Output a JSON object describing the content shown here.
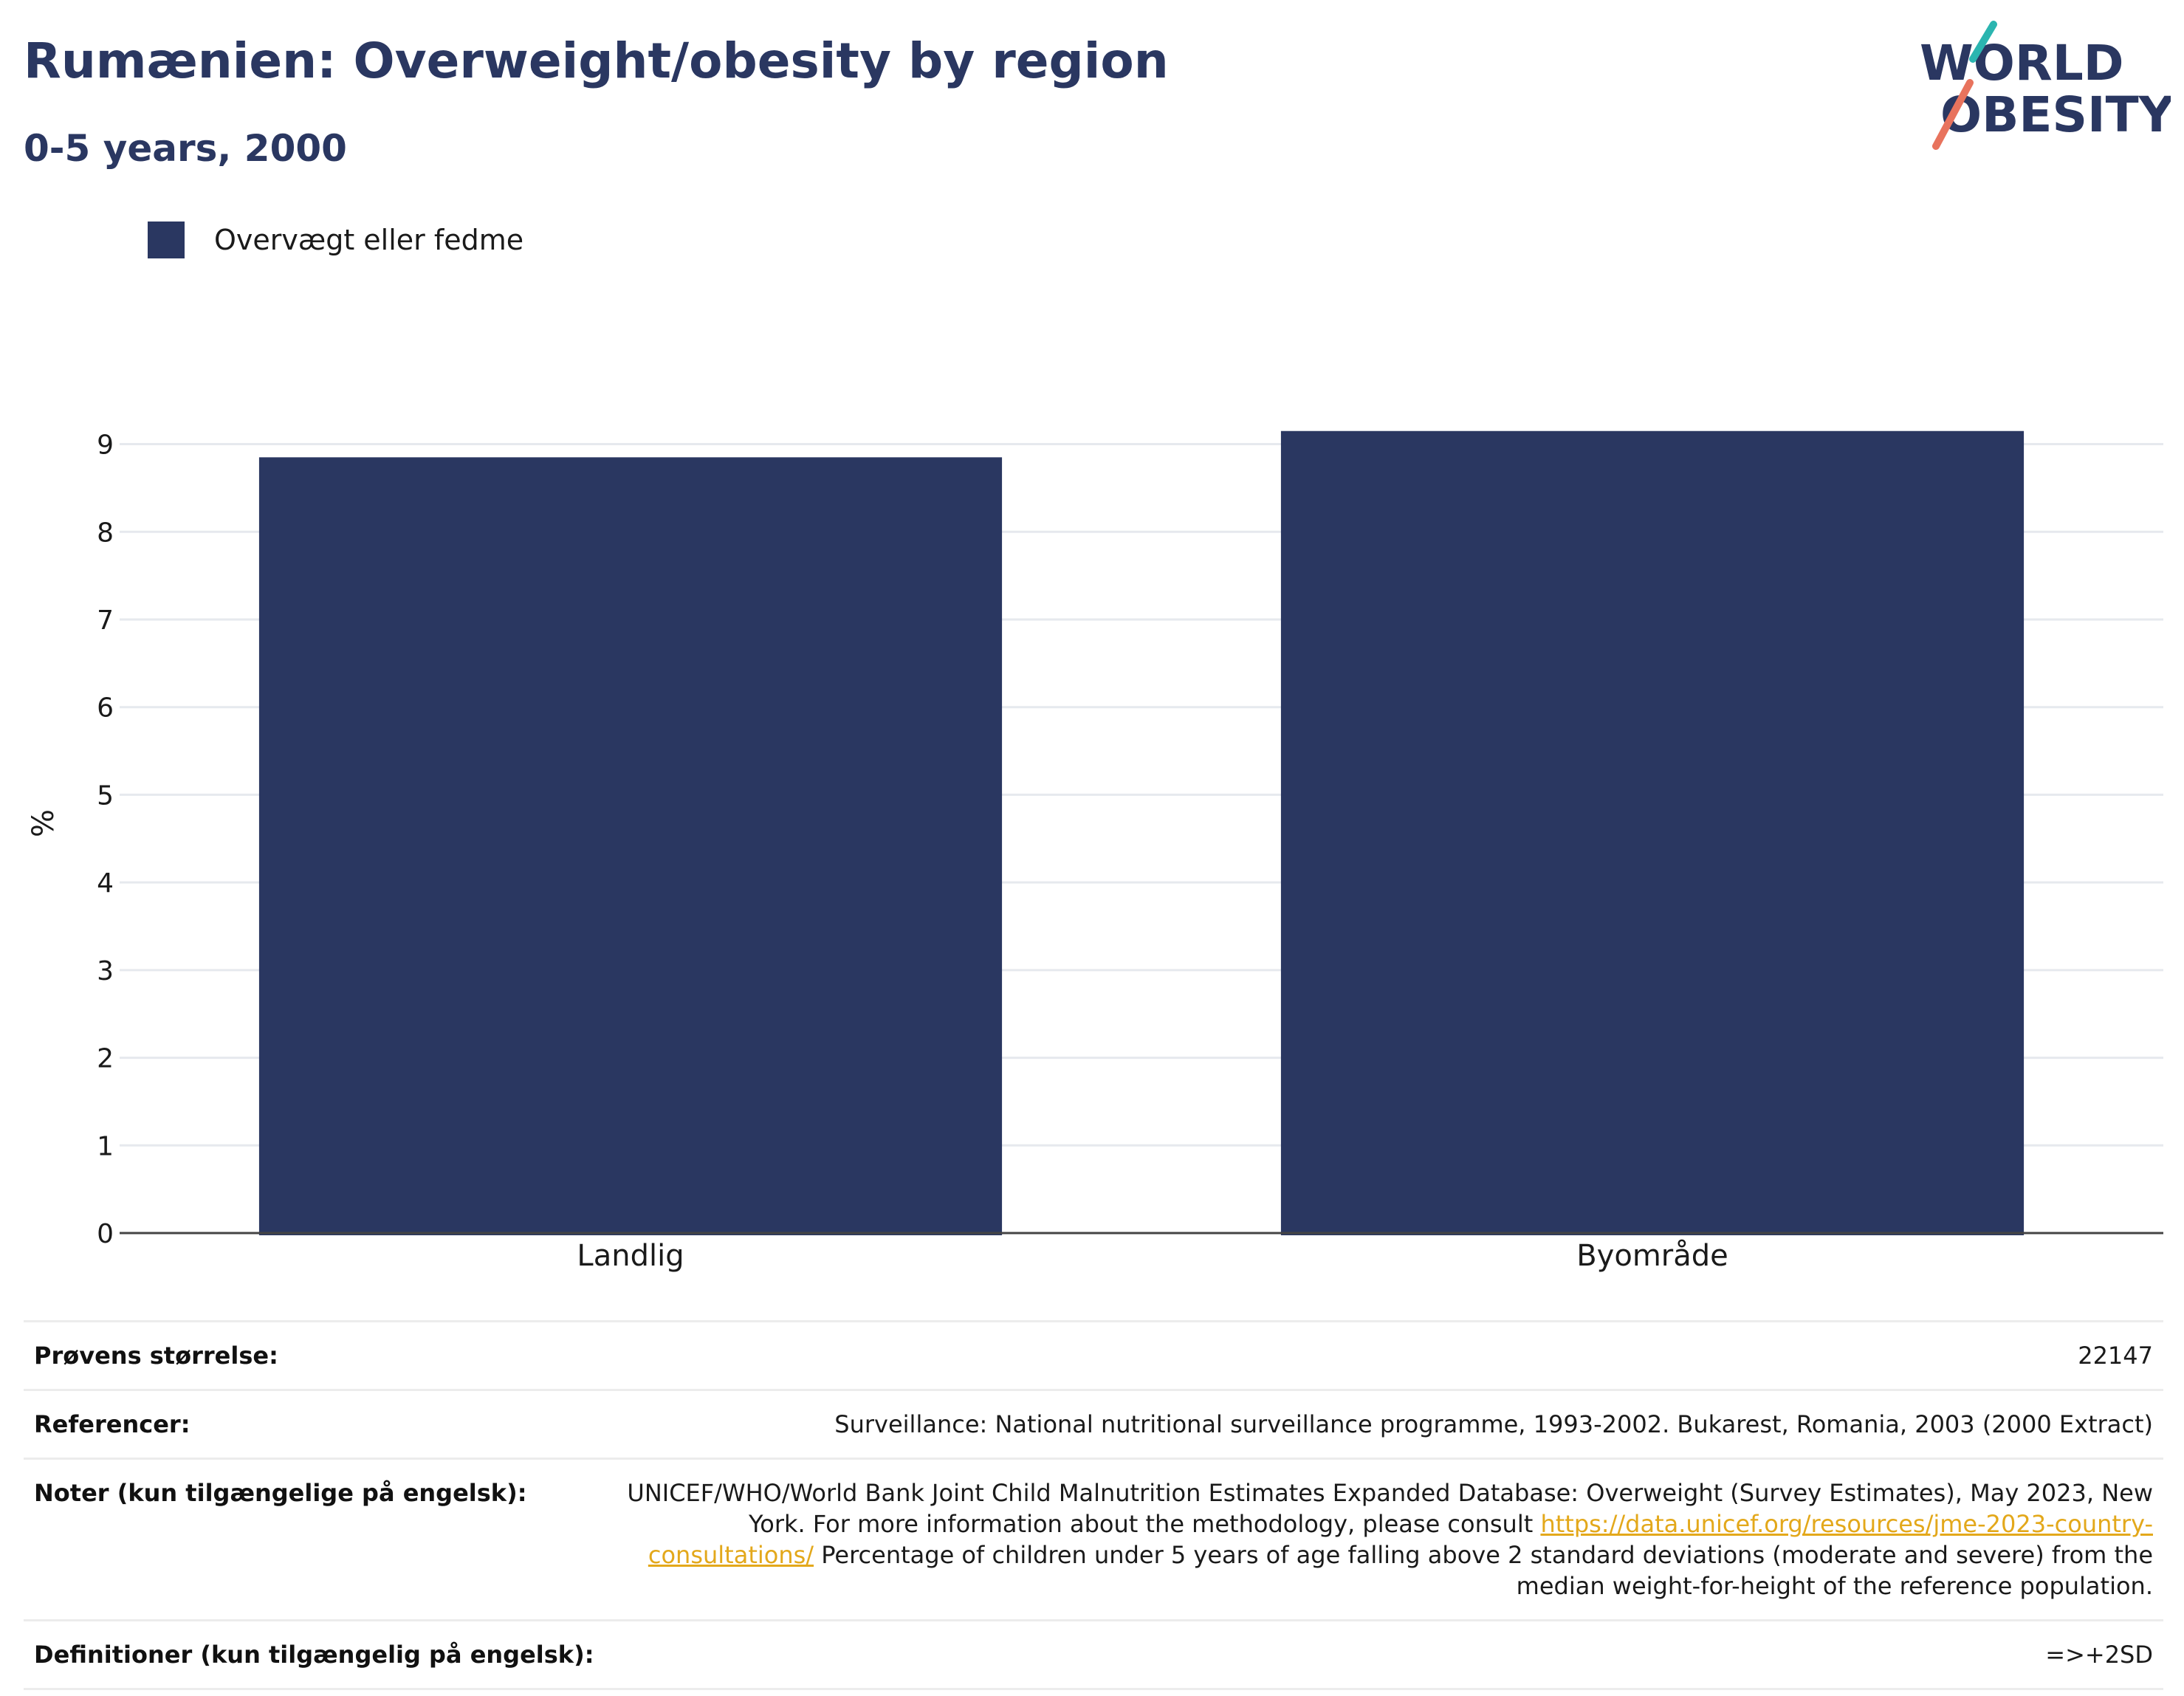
{
  "header": {
    "title": "Rumænien: Overweight/obesity by region",
    "subtitle": "0-5 years, 2000"
  },
  "logo": {
    "line1": "WORLD",
    "line2": "OBESITY",
    "colors": {
      "text": "#2a3761",
      "accent_teal": "#2bb5b0",
      "accent_coral": "#e8735d"
    }
  },
  "legend": {
    "items": [
      {
        "label": "Overvægt eller fedme",
        "color": "#2a3761"
      }
    ],
    "placement": "top-left"
  },
  "chart_data": {
    "type": "bar",
    "categories": [
      "Landlig",
      "Byområde"
    ],
    "series": [
      {
        "name": "Overvægt eller fedme",
        "values": [
          8.85,
          9.15
        ],
        "color": "#2a3761"
      }
    ],
    "title": "Rumænien: Overweight/obesity by region",
    "subtitle": "0-5 years, 2000",
    "xlabel": "",
    "ylabel": "%",
    "ylim": [
      0,
      9.35
    ],
    "yticks": [
      0,
      1,
      2,
      3,
      4,
      5,
      6,
      7,
      8,
      9
    ],
    "grid": true
  },
  "info": {
    "rows": [
      {
        "key": "Prøvens størrelse:",
        "value": "22147"
      },
      {
        "key": "Referencer:",
        "value": "Surveillance: National nutritional surveillance programme, 1993-2002. Bukarest, Romania, 2003 (2000 Extract)"
      },
      {
        "key": "Noter (kun tilgængelige på engelsk):",
        "value_part1": "UNICEF/WHO/World Bank Joint Child Malnutrition Estimates Expanded Database: Overweight (Survey Estimates), May 2023, New York. For more information about the methodology, please consult",
        "link": "https://data.unicef.org/resources/jme-2023-country-consultations/",
        "value_part2": "Percentage of children under 5 years of age falling above 2 standard deviations (moderate and severe) from the median weight-for-height of the reference population."
      },
      {
        "key": "Definitioner (kun tilgængelig på engelsk):",
        "value": "=>+2SD"
      }
    ]
  }
}
